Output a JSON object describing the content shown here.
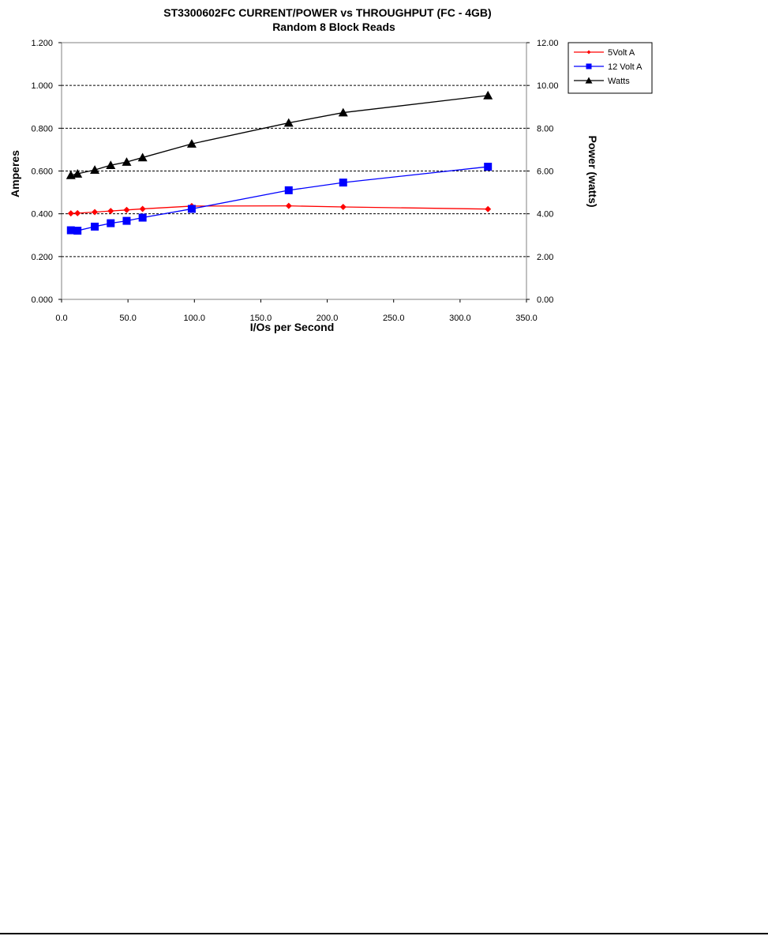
{
  "chart_data": {
    "type": "line",
    "title": "ST3300602FC CURRENT/POWER vs THROUGHPUT (FC - 4GB)",
    "subtitle": "Random 8 Block Reads",
    "xlabel": "I/Os per Second",
    "ylabel": "Amperes",
    "y2label": "Power (watts)",
    "xlim": [
      0,
      350
    ],
    "ylim": [
      0,
      1.2
    ],
    "y2lim": [
      0,
      12
    ],
    "x_ticks": [
      "0.0",
      "50.0",
      "100.0",
      "150.0",
      "200.0",
      "250.0",
      "300.0",
      "350.0"
    ],
    "y_ticks": [
      "0.000",
      "0.200",
      "0.400",
      "0.600",
      "0.800",
      "1.000",
      "1.200"
    ],
    "y2_ticks": [
      "0.00",
      "2.00",
      "4.00",
      "6.00",
      "8.00",
      "10.00",
      "12.00"
    ],
    "grid": "horizontal dashed",
    "legend_position": "right",
    "series": [
      {
        "name": "5Volt A",
        "axis": "left",
        "color": "#ff0000",
        "marker": "diamond",
        "x": [
          7,
          12,
          25,
          37,
          49,
          61,
          98,
          171,
          212,
          321
        ],
        "y": [
          0.402,
          0.403,
          0.408,
          0.413,
          0.418,
          0.423,
          0.436,
          0.437,
          0.432,
          0.422
        ]
      },
      {
        "name": "12 Volt A",
        "axis": "left",
        "color": "#0000ff",
        "marker": "square",
        "x": [
          7,
          12,
          25,
          37,
          49,
          61,
          98,
          171,
          212,
          321
        ],
        "y": [
          0.323,
          0.321,
          0.34,
          0.356,
          0.367,
          0.382,
          0.423,
          0.51,
          0.546,
          0.62
        ]
      },
      {
        "name": "Watts",
        "axis": "right",
        "color": "#000000",
        "marker": "triangle",
        "x": [
          7,
          12,
          25,
          37,
          49,
          61,
          98,
          171,
          212,
          321
        ],
        "y": [
          5.8,
          5.87,
          6.05,
          6.27,
          6.42,
          6.63,
          7.27,
          8.25,
          8.73,
          9.53
        ]
      }
    ]
  }
}
